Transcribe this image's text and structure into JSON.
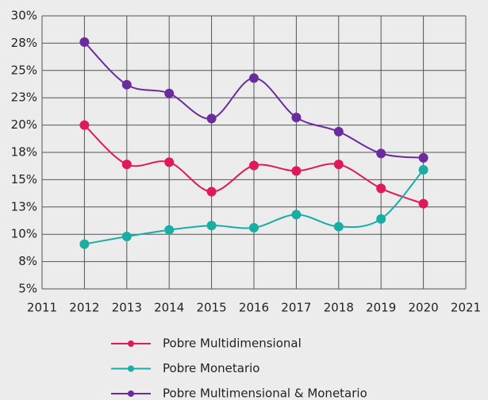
{
  "chart_data": {
    "type": "line",
    "x": [
      2012,
      2013,
      2014,
      2015,
      2016,
      2017,
      2018,
      2019,
      2020
    ],
    "series": [
      {
        "name": "Pobre Multidimensional",
        "color": "#e0195a",
        "values": [
          20.0,
          16.4,
          16.6,
          13.9,
          16.3,
          15.8,
          16.4,
          14.2,
          12.8
        ]
      },
      {
        "name": "Pobre Monetario",
        "color": "#1aada3",
        "values": [
          9.1,
          9.8,
          10.4,
          10.8,
          10.6,
          11.8,
          10.7,
          11.4,
          15.9
        ]
      },
      {
        "name": "Pobre Multimensional & Monetario",
        "color": "#6a2c9c",
        "values": [
          27.6,
          23.7,
          22.9,
          20.6,
          24.3,
          20.7,
          19.4,
          17.4,
          17.0
        ]
      }
    ],
    "xlim": [
      2011,
      2021
    ],
    "xticks": [
      2011,
      2012,
      2013,
      2014,
      2015,
      2016,
      2017,
      2018,
      2019,
      2020,
      2021
    ],
    "ylim": [
      5,
      30
    ],
    "yticks": [
      {
        "value": 5,
        "label": "5%"
      },
      {
        "value": 7.5,
        "label": "8%"
      },
      {
        "value": 10,
        "label": "10%"
      },
      {
        "value": 12.5,
        "label": "13%"
      },
      {
        "value": 15,
        "label": "15%"
      },
      {
        "value": 17.5,
        "label": "18%"
      },
      {
        "value": 20,
        "label": "20%"
      },
      {
        "value": 22.5,
        "label": "23%"
      },
      {
        "value": 25,
        "label": "25%"
      },
      {
        "value": 27.5,
        "label": "28%"
      },
      {
        "value": 30,
        "label": "30%"
      }
    ],
    "grid": true
  }
}
